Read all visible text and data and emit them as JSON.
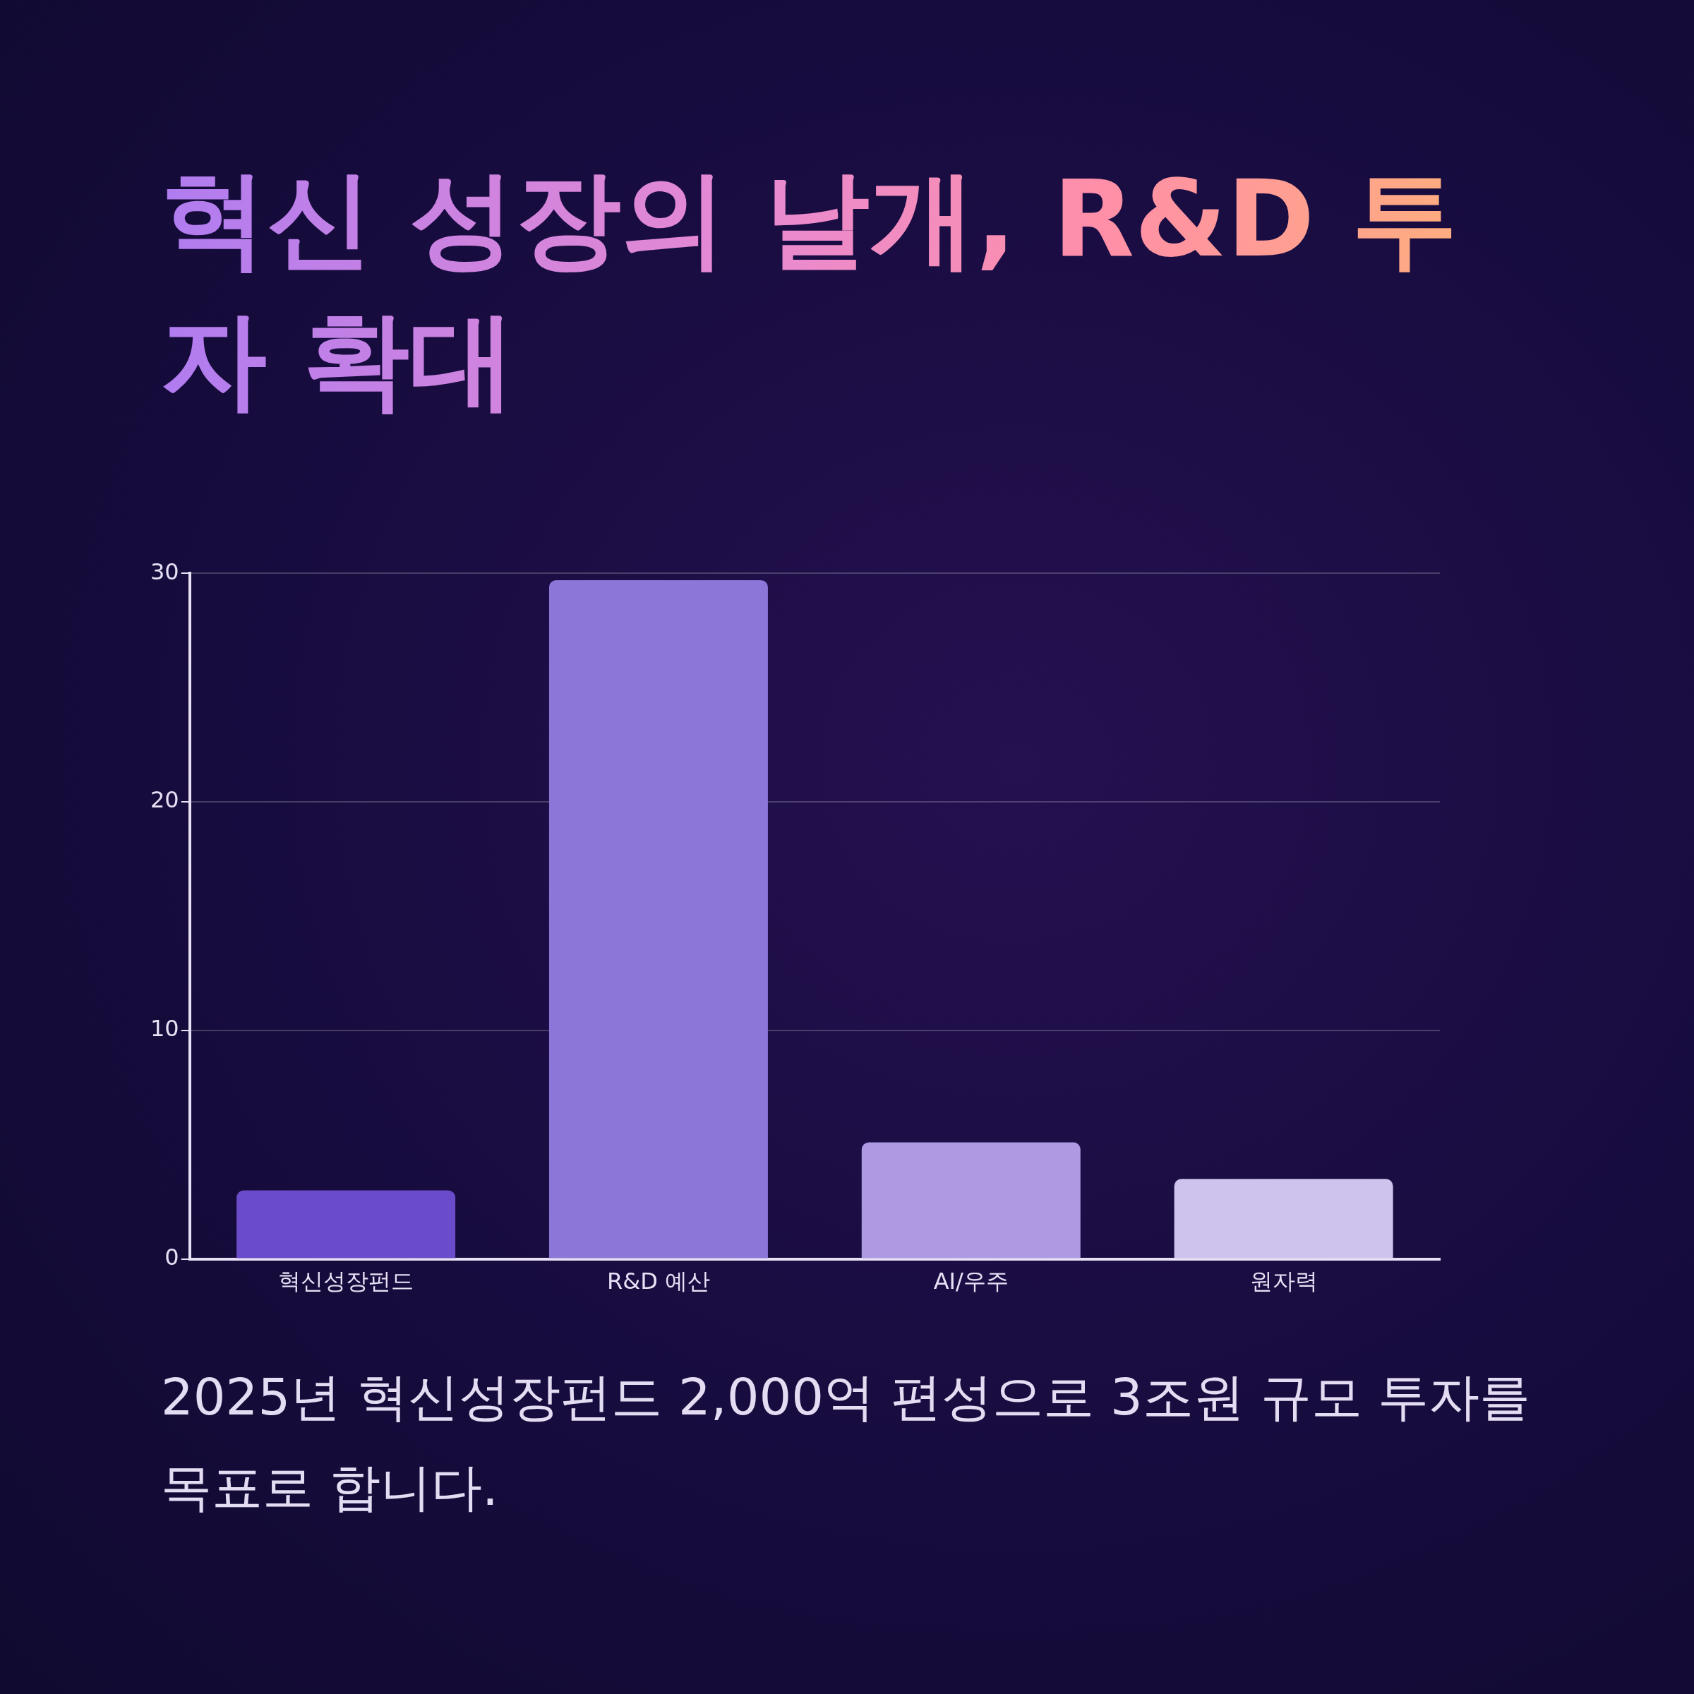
{
  "chart_data": {
    "type": "bar",
    "title": "혁신 성장의 날개, R&D 투자 확대",
    "categories": [
      "혁신성장펀드",
      "R&D 예산",
      "AI/우주",
      "원자력"
    ],
    "values": [
      3,
      29.7,
      5.1,
      3.5
    ],
    "colors": [
      "#6a4bc9",
      "#8c76d8",
      "#ae9ae2",
      "#cdc3ed"
    ],
    "ylim": [
      0,
      30
    ],
    "yticks": [
      0,
      10,
      20,
      30
    ],
    "grid": "y",
    "legend": false,
    "annotations": [
      "2025년 혁신성장펀드 2,000억 편성으로 3조원 규모 투자를 목표로 합니다."
    ]
  }
}
